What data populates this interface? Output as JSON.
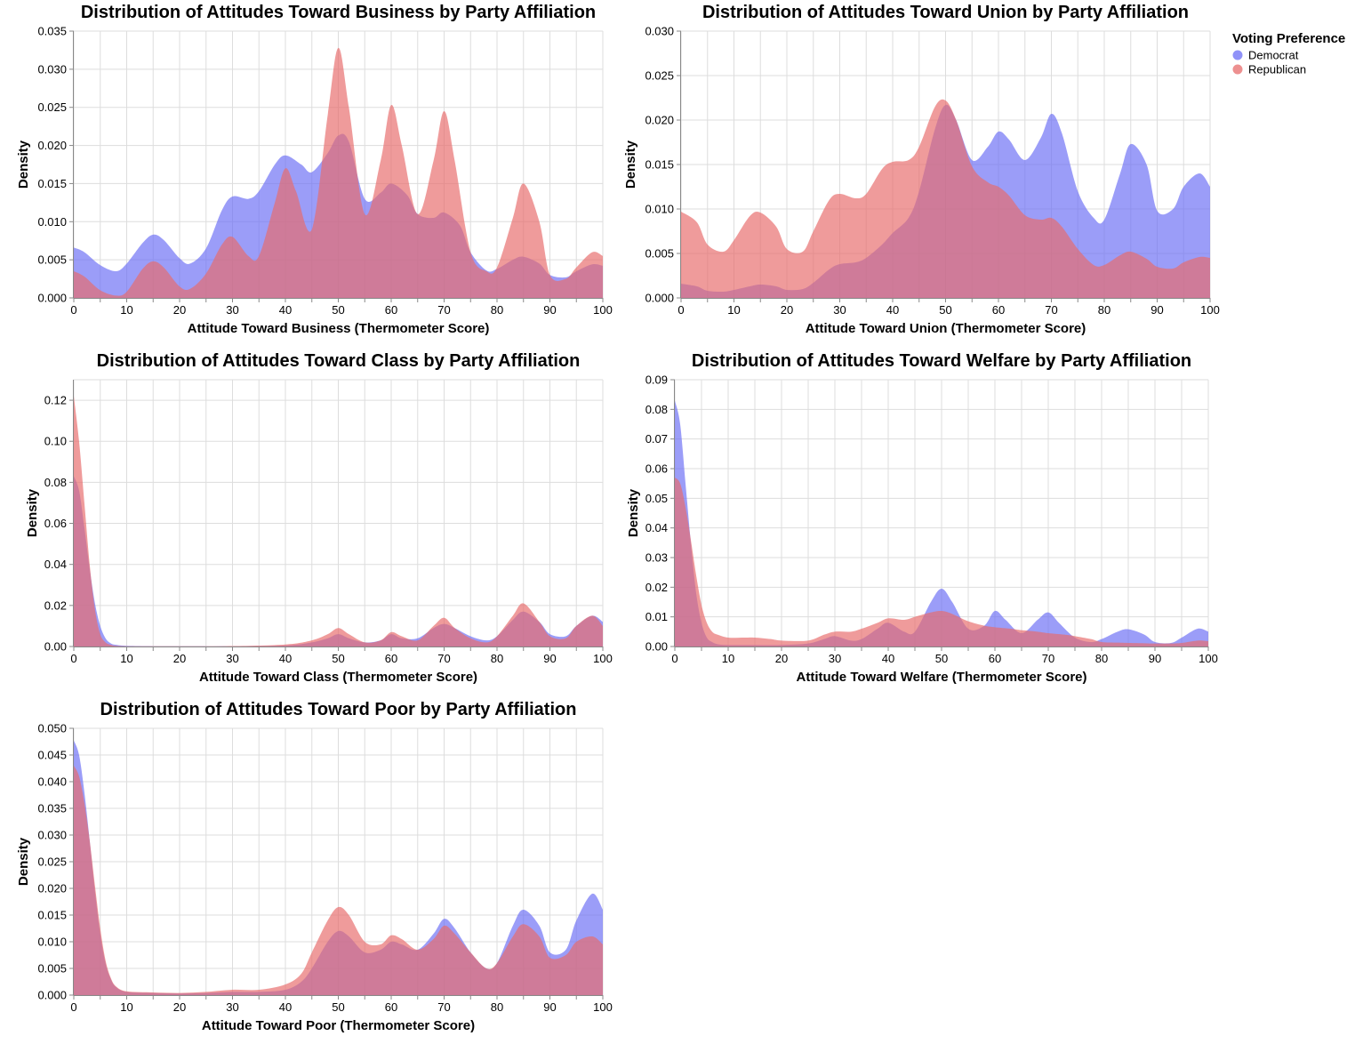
{
  "legend": {
    "title": "Voting Preference",
    "items": [
      {
        "label": "Democrat",
        "color": "#6b6ef5"
      },
      {
        "label": "Republican",
        "color": "#e76b6b"
      }
    ]
  },
  "chart_data": [
    {
      "type": "area",
      "title": "Distribution of Attitudes Toward Business by Party Affiliation",
      "xlabel": "Attitude Toward Business (Thermometer Score)",
      "ylabel": "Density",
      "xlim": [
        0,
        100
      ],
      "ylim": [
        0,
        0.035
      ],
      "xticks": [
        0,
        10,
        20,
        30,
        40,
        50,
        60,
        70,
        80,
        90,
        100
      ],
      "yticks": [
        0,
        0.005,
        0.01,
        0.015,
        0.02,
        0.025,
        0.03,
        0.035
      ],
      "ytick_decimals": 3,
      "grid": true,
      "series": [
        {
          "name": "Democrat",
          "x": [
            0,
            2,
            5,
            8,
            10,
            13,
            15,
            17,
            20,
            22,
            25,
            28,
            30,
            33,
            35,
            38,
            40,
            43,
            45,
            48,
            50,
            52,
            55,
            58,
            60,
            63,
            65,
            68,
            70,
            73,
            75,
            78,
            80,
            83,
            85,
            88,
            90,
            93,
            95,
            98,
            100
          ],
          "y": [
            0.0066,
            0.006,
            0.0043,
            0.0035,
            0.0045,
            0.0072,
            0.0083,
            0.0076,
            0.0052,
            0.0045,
            0.0065,
            0.0115,
            0.0133,
            0.013,
            0.014,
            0.0175,
            0.0187,
            0.0175,
            0.0165,
            0.019,
            0.0213,
            0.0205,
            0.013,
            0.0138,
            0.015,
            0.0135,
            0.011,
            0.0105,
            0.0112,
            0.0095,
            0.006,
            0.0036,
            0.0038,
            0.005,
            0.0054,
            0.0045,
            0.003,
            0.0027,
            0.0035,
            0.0044,
            0.0042
          ]
        },
        {
          "name": "Republican",
          "x": [
            0,
            2,
            5,
            8,
            10,
            13,
            15,
            17,
            20,
            22,
            25,
            28,
            30,
            33,
            35,
            38,
            40,
            42,
            45,
            48,
            50,
            52,
            55,
            58,
            60,
            62,
            65,
            68,
            70,
            72,
            75,
            78,
            80,
            83,
            85,
            88,
            90,
            93,
            95,
            98,
            100
          ],
          "y": [
            0.0035,
            0.0028,
            0.001,
            0.0003,
            0.0008,
            0.0038,
            0.0048,
            0.004,
            0.0015,
            0.0012,
            0.0032,
            0.007,
            0.008,
            0.0055,
            0.0055,
            0.0125,
            0.017,
            0.014,
            0.009,
            0.024,
            0.0328,
            0.025,
            0.011,
            0.018,
            0.0253,
            0.02,
            0.011,
            0.018,
            0.0245,
            0.018,
            0.006,
            0.0035,
            0.004,
            0.0105,
            0.015,
            0.01,
            0.003,
            0.0025,
            0.004,
            0.006,
            0.0055
          ]
        }
      ]
    },
    {
      "type": "area",
      "title": "Distribution of Attitudes Toward Union by Party Affiliation",
      "xlabel": "Attitude Toward Union (Thermometer Score)",
      "ylabel": "Density",
      "xlim": [
        0,
        100
      ],
      "ylim": [
        0,
        0.03
      ],
      "xticks": [
        0,
        10,
        20,
        30,
        40,
        50,
        60,
        70,
        80,
        90,
        100
      ],
      "yticks": [
        0,
        0.005,
        0.01,
        0.015,
        0.02,
        0.025,
        0.03
      ],
      "ytick_decimals": 3,
      "grid": true,
      "series": [
        {
          "name": "Democrat",
          "x": [
            0,
            3,
            5,
            8,
            10,
            13,
            15,
            18,
            20,
            23,
            25,
            28,
            30,
            33,
            35,
            38,
            40,
            43,
            45,
            48,
            50,
            52,
            55,
            58,
            60,
            62,
            65,
            68,
            70,
            72,
            75,
            78,
            80,
            83,
            85,
            88,
            90,
            93,
            95,
            98,
            100
          ],
          "y": [
            0.0016,
            0.0013,
            0.0008,
            0.0007,
            0.0009,
            0.0013,
            0.0015,
            0.0013,
            0.0009,
            0.001,
            0.0017,
            0.0032,
            0.0038,
            0.004,
            0.0045,
            0.006,
            0.0073,
            0.009,
            0.012,
            0.019,
            0.0217,
            0.02,
            0.0155,
            0.017,
            0.0187,
            0.0178,
            0.0155,
            0.018,
            0.0207,
            0.0185,
            0.012,
            0.009,
            0.0088,
            0.014,
            0.0173,
            0.015,
            0.0098,
            0.01,
            0.0125,
            0.014,
            0.0125
          ]
        },
        {
          "name": "Republican",
          "x": [
            0,
            3,
            5,
            8,
            10,
            13,
            15,
            18,
            20,
            23,
            25,
            28,
            30,
            33,
            35,
            38,
            40,
            43,
            45,
            48,
            50,
            52,
            55,
            58,
            60,
            62,
            65,
            68,
            70,
            72,
            75,
            78,
            80,
            83,
            85,
            88,
            90,
            93,
            95,
            98,
            100
          ],
          "y": [
            0.0097,
            0.0085,
            0.006,
            0.0052,
            0.0065,
            0.0092,
            0.0096,
            0.008,
            0.0055,
            0.0052,
            0.0075,
            0.011,
            0.0117,
            0.0112,
            0.0117,
            0.0145,
            0.0153,
            0.0155,
            0.017,
            0.0215,
            0.0222,
            0.02,
            0.0148,
            0.013,
            0.0125,
            0.0115,
            0.0093,
            0.0088,
            0.009,
            0.008,
            0.0055,
            0.0037,
            0.0037,
            0.0048,
            0.0052,
            0.0044,
            0.0035,
            0.0033,
            0.004,
            0.0046,
            0.0045
          ]
        }
      ]
    },
    {
      "type": "area",
      "title": "Distribution of Attitudes Toward Class by Party Affiliation",
      "xlabel": "Attitude Toward Class (Thermometer Score)",
      "ylabel": "Density",
      "xlim": [
        0,
        100
      ],
      "ylim": [
        0,
        0.13
      ],
      "xticks": [
        0,
        10,
        20,
        30,
        40,
        50,
        60,
        70,
        80,
        90,
        100
      ],
      "yticks": [
        0,
        0.02,
        0.04,
        0.06,
        0.08,
        0.1,
        0.12
      ],
      "ytick_decimals": 2,
      "grid": true,
      "series": [
        {
          "name": "Democrat",
          "x": [
            0,
            1,
            2,
            3,
            4,
            5,
            6,
            7,
            8,
            10,
            15,
            20,
            30,
            40,
            45,
            48,
            50,
            52,
            55,
            58,
            60,
            62,
            65,
            68,
            70,
            72,
            75,
            78,
            80,
            83,
            85,
            88,
            90,
            93,
            95,
            98,
            100
          ],
          "y": [
            0.083,
            0.076,
            0.058,
            0.038,
            0.021,
            0.01,
            0.004,
            0.0015,
            0.0008,
            0.0003,
            0.0001,
            0.0001,
            0.0001,
            0.0005,
            0.002,
            0.004,
            0.006,
            0.004,
            0.002,
            0.003,
            0.006,
            0.004,
            0.004,
            0.009,
            0.011,
            0.009,
            0.005,
            0.003,
            0.005,
            0.013,
            0.017,
            0.012,
            0.006,
            0.005,
            0.01,
            0.015,
            0.012
          ]
        },
        {
          "name": "Republican",
          "x": [
            0,
            1,
            2,
            3,
            4,
            5,
            6,
            7,
            8,
            10,
            15,
            20,
            30,
            40,
            45,
            48,
            50,
            52,
            55,
            58,
            60,
            62,
            65,
            68,
            70,
            72,
            75,
            78,
            80,
            83,
            85,
            88,
            90,
            93,
            95,
            98,
            100
          ],
          "y": [
            0.122,
            0.1,
            0.07,
            0.04,
            0.018,
            0.006,
            0.002,
            0.0008,
            0.0003,
            0.0001,
            0.0001,
            0.0001,
            0.0002,
            0.001,
            0.003,
            0.006,
            0.009,
            0.006,
            0.002,
            0.003,
            0.007,
            0.005,
            0.003,
            0.01,
            0.014,
            0.009,
            0.004,
            0.002,
            0.005,
            0.015,
            0.021,
            0.012,
            0.005,
            0.004,
            0.01,
            0.015,
            0.01
          ]
        }
      ]
    },
    {
      "type": "area",
      "title": "Distribution of Attitudes Toward Welfare by Party Affiliation",
      "xlabel": "Attitude Toward Welfare (Thermometer Score)",
      "ylabel": "Density",
      "xlim": [
        0,
        100
      ],
      "ylim": [
        0,
        0.09
      ],
      "xticks": [
        0,
        10,
        20,
        30,
        40,
        50,
        60,
        70,
        80,
        90,
        100
      ],
      "yticks": [
        0,
        0.01,
        0.02,
        0.03,
        0.04,
        0.05,
        0.06,
        0.07,
        0.08,
        0.09
      ],
      "ytick_decimals": 2,
      "grid": true,
      "series": [
        {
          "name": "Democrat",
          "x": [
            0,
            1,
            2,
            3,
            4,
            5,
            6,
            7,
            8,
            10,
            15,
            20,
            25,
            28,
            30,
            33,
            35,
            38,
            40,
            43,
            45,
            48,
            50,
            52,
            55,
            58,
            60,
            62,
            65,
            68,
            70,
            72,
            75,
            78,
            80,
            83,
            85,
            88,
            90,
            93,
            95,
            98,
            100
          ],
          "y": [
            0.083,
            0.075,
            0.055,
            0.035,
            0.018,
            0.008,
            0.003,
            0.0015,
            0.0008,
            0.0005,
            0.0005,
            0.0005,
            0.001,
            0.0025,
            0.0035,
            0.002,
            0.0025,
            0.006,
            0.008,
            0.005,
            0.005,
            0.015,
            0.0195,
            0.015,
            0.006,
            0.007,
            0.012,
            0.009,
            0.0045,
            0.009,
            0.0115,
            0.008,
            0.003,
            0.0015,
            0.0025,
            0.005,
            0.0058,
            0.004,
            0.0015,
            0.0012,
            0.003,
            0.006,
            0.005
          ]
        },
        {
          "name": "Republican",
          "x": [
            0,
            1,
            2,
            3,
            4,
            5,
            6,
            7,
            8,
            10,
            13,
            15,
            18,
            20,
            25,
            28,
            30,
            33,
            35,
            38,
            40,
            43,
            45,
            48,
            50,
            52,
            55,
            58,
            60,
            63,
            65,
            68,
            70,
            73,
            75,
            78,
            80,
            83,
            85,
            88,
            90,
            93,
            95,
            98,
            100
          ],
          "y": [
            0.057,
            0.055,
            0.047,
            0.036,
            0.024,
            0.014,
            0.008,
            0.005,
            0.004,
            0.003,
            0.003,
            0.003,
            0.0025,
            0.002,
            0.002,
            0.004,
            0.005,
            0.005,
            0.006,
            0.008,
            0.0095,
            0.009,
            0.01,
            0.0115,
            0.012,
            0.011,
            0.0085,
            0.007,
            0.0065,
            0.006,
            0.0055,
            0.005,
            0.0045,
            0.004,
            0.0035,
            0.0025,
            0.0015,
            0.0013,
            0.0012,
            0.0011,
            0.001,
            0.001,
            0.0012,
            0.002,
            0.0018
          ]
        }
      ]
    },
    {
      "type": "area",
      "title": "Distribution of Attitudes Toward Poor by Party Affiliation",
      "xlabel": "Attitude Toward Poor (Thermometer Score)",
      "ylabel": "Density",
      "xlim": [
        0,
        100
      ],
      "ylim": [
        0,
        0.05
      ],
      "xticks": [
        0,
        10,
        20,
        30,
        40,
        50,
        60,
        70,
        80,
        90,
        100
      ],
      "yticks": [
        0,
        0.005,
        0.01,
        0.015,
        0.02,
        0.025,
        0.03,
        0.035,
        0.04,
        0.045,
        0.05
      ],
      "ytick_decimals": 3,
      "grid": true,
      "series": [
        {
          "name": "Democrat",
          "x": [
            0,
            1,
            2,
            3,
            4,
            5,
            6,
            7,
            8,
            10,
            15,
            20,
            25,
            30,
            35,
            40,
            43,
            45,
            48,
            50,
            52,
            55,
            58,
            60,
            62,
            65,
            68,
            70,
            72,
            75,
            78,
            80,
            83,
            85,
            88,
            90,
            93,
            95,
            98,
            100
          ],
          "y": [
            0.0477,
            0.045,
            0.038,
            0.029,
            0.0195,
            0.0115,
            0.006,
            0.003,
            0.0015,
            0.0006,
            0.0004,
            0.0003,
            0.0004,
            0.0006,
            0.0006,
            0.001,
            0.0025,
            0.005,
            0.01,
            0.012,
            0.011,
            0.008,
            0.0085,
            0.01,
            0.0095,
            0.0085,
            0.0115,
            0.0143,
            0.0125,
            0.008,
            0.005,
            0.006,
            0.013,
            0.016,
            0.013,
            0.008,
            0.0085,
            0.014,
            0.019,
            0.016
          ]
        },
        {
          "name": "Republican",
          "x": [
            0,
            1,
            2,
            3,
            4,
            5,
            6,
            7,
            8,
            10,
            15,
            20,
            25,
            30,
            35,
            40,
            43,
            45,
            48,
            50,
            52,
            55,
            58,
            60,
            62,
            65,
            68,
            70,
            72,
            75,
            78,
            80,
            83,
            85,
            88,
            90,
            93,
            95,
            98,
            100
          ],
          "y": [
            0.043,
            0.041,
            0.036,
            0.029,
            0.0205,
            0.0125,
            0.0065,
            0.0032,
            0.0016,
            0.0007,
            0.0005,
            0.0004,
            0.0006,
            0.001,
            0.001,
            0.002,
            0.004,
            0.008,
            0.014,
            0.0165,
            0.015,
            0.01,
            0.0095,
            0.0112,
            0.0105,
            0.0085,
            0.0105,
            0.013,
            0.0115,
            0.008,
            0.005,
            0.006,
            0.011,
            0.0133,
            0.011,
            0.007,
            0.0075,
            0.01,
            0.011,
            0.0095
          ]
        }
      ]
    }
  ]
}
